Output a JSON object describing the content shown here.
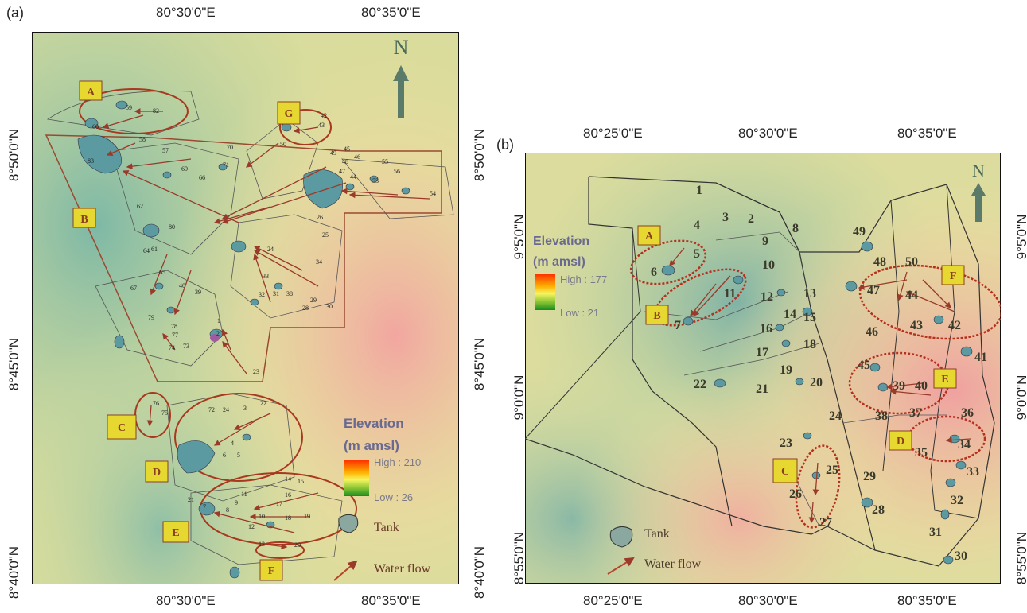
{
  "panel_a": {
    "label": "(a)",
    "lon_top": [
      "80°30'0\"E",
      "80°35'0\"E"
    ],
    "lon_bottom": [
      "80°30'0\"E",
      "80°35'0\"E"
    ],
    "lat_left": [
      "8°50'0\"N",
      "8°45'0\"N",
      "8°40'0\"N"
    ],
    "lat_right": [
      "8°50'0\"N",
      "8°45'0\"N",
      "8°40'0\"N"
    ],
    "north": "N",
    "zones": [
      "A",
      "B",
      "C",
      "D",
      "E",
      "F",
      "G"
    ],
    "legend": {
      "title1": "Elevation",
      "title2": "(m amsl)",
      "high": "High : 210",
      "low": "Low : 26",
      "tank": "Tank",
      "water_flow": "Water flow"
    },
    "tank_numbers": [
      "59",
      "82",
      "60",
      "58",
      "57",
      "83",
      "69",
      "66",
      "70",
      "71",
      "50",
      "49",
      "48",
      "47",
      "45",
      "46",
      "44",
      "55",
      "56",
      "53",
      "54",
      "43",
      "42",
      "63",
      "61",
      "62",
      "80",
      "26",
      "25",
      "24",
      "34",
      "33",
      "32",
      "31",
      "38",
      "29",
      "28",
      "30",
      "65",
      "64",
      "67",
      "40",
      "39",
      "79",
      "78",
      "77",
      "74",
      "73",
      "2",
      "1",
      "75",
      "23",
      "76",
      "22",
      "21",
      "20",
      "3",
      "4",
      "5",
      "6",
      "7",
      "8",
      "9",
      "10",
      "11",
      "12",
      "13",
      "14",
      "15",
      "16",
      "17",
      "18",
      "19"
    ]
  },
  "panel_b": {
    "label": "(b)",
    "lon_top": [
      "80°25'0\"E",
      "80°30'0\"E",
      "80°35'0\"E"
    ],
    "lon_bottom": [
      "80°25'0\"E",
      "80°30'0\"E",
      "80°35'0\"E"
    ],
    "lat_left": [
      "9°5'0\"N",
      "9°0'0\"N",
      "8°55'0\"N"
    ],
    "lat_right": [
      "9°5'0\"N",
      "9°0'0\"N",
      "8°55'0\"N"
    ],
    "north": "N",
    "zones": [
      "A",
      "B",
      "C",
      "D",
      "E",
      "F"
    ],
    "legend": {
      "title1": "Elevation",
      "title2": "(m amsl)",
      "high": "High : 177",
      "low": "Low : 21",
      "tank": "Tank",
      "water_flow": "Water flow"
    },
    "tank_numbers": [
      "1",
      "2",
      "3",
      "4",
      "5",
      "6",
      "7",
      "8",
      "9",
      "10",
      "11",
      "12",
      "13",
      "14",
      "15",
      "16",
      "17",
      "18",
      "19",
      "20",
      "21",
      "22",
      "23",
      "24",
      "25",
      "26",
      "27",
      "28",
      "29",
      "30",
      "31",
      "32",
      "33",
      "34",
      "35",
      "36",
      "37",
      "38",
      "39",
      "40",
      "41",
      "42",
      "43",
      "44",
      "45",
      "46",
      "47",
      "48",
      "49",
      "50"
    ]
  }
}
